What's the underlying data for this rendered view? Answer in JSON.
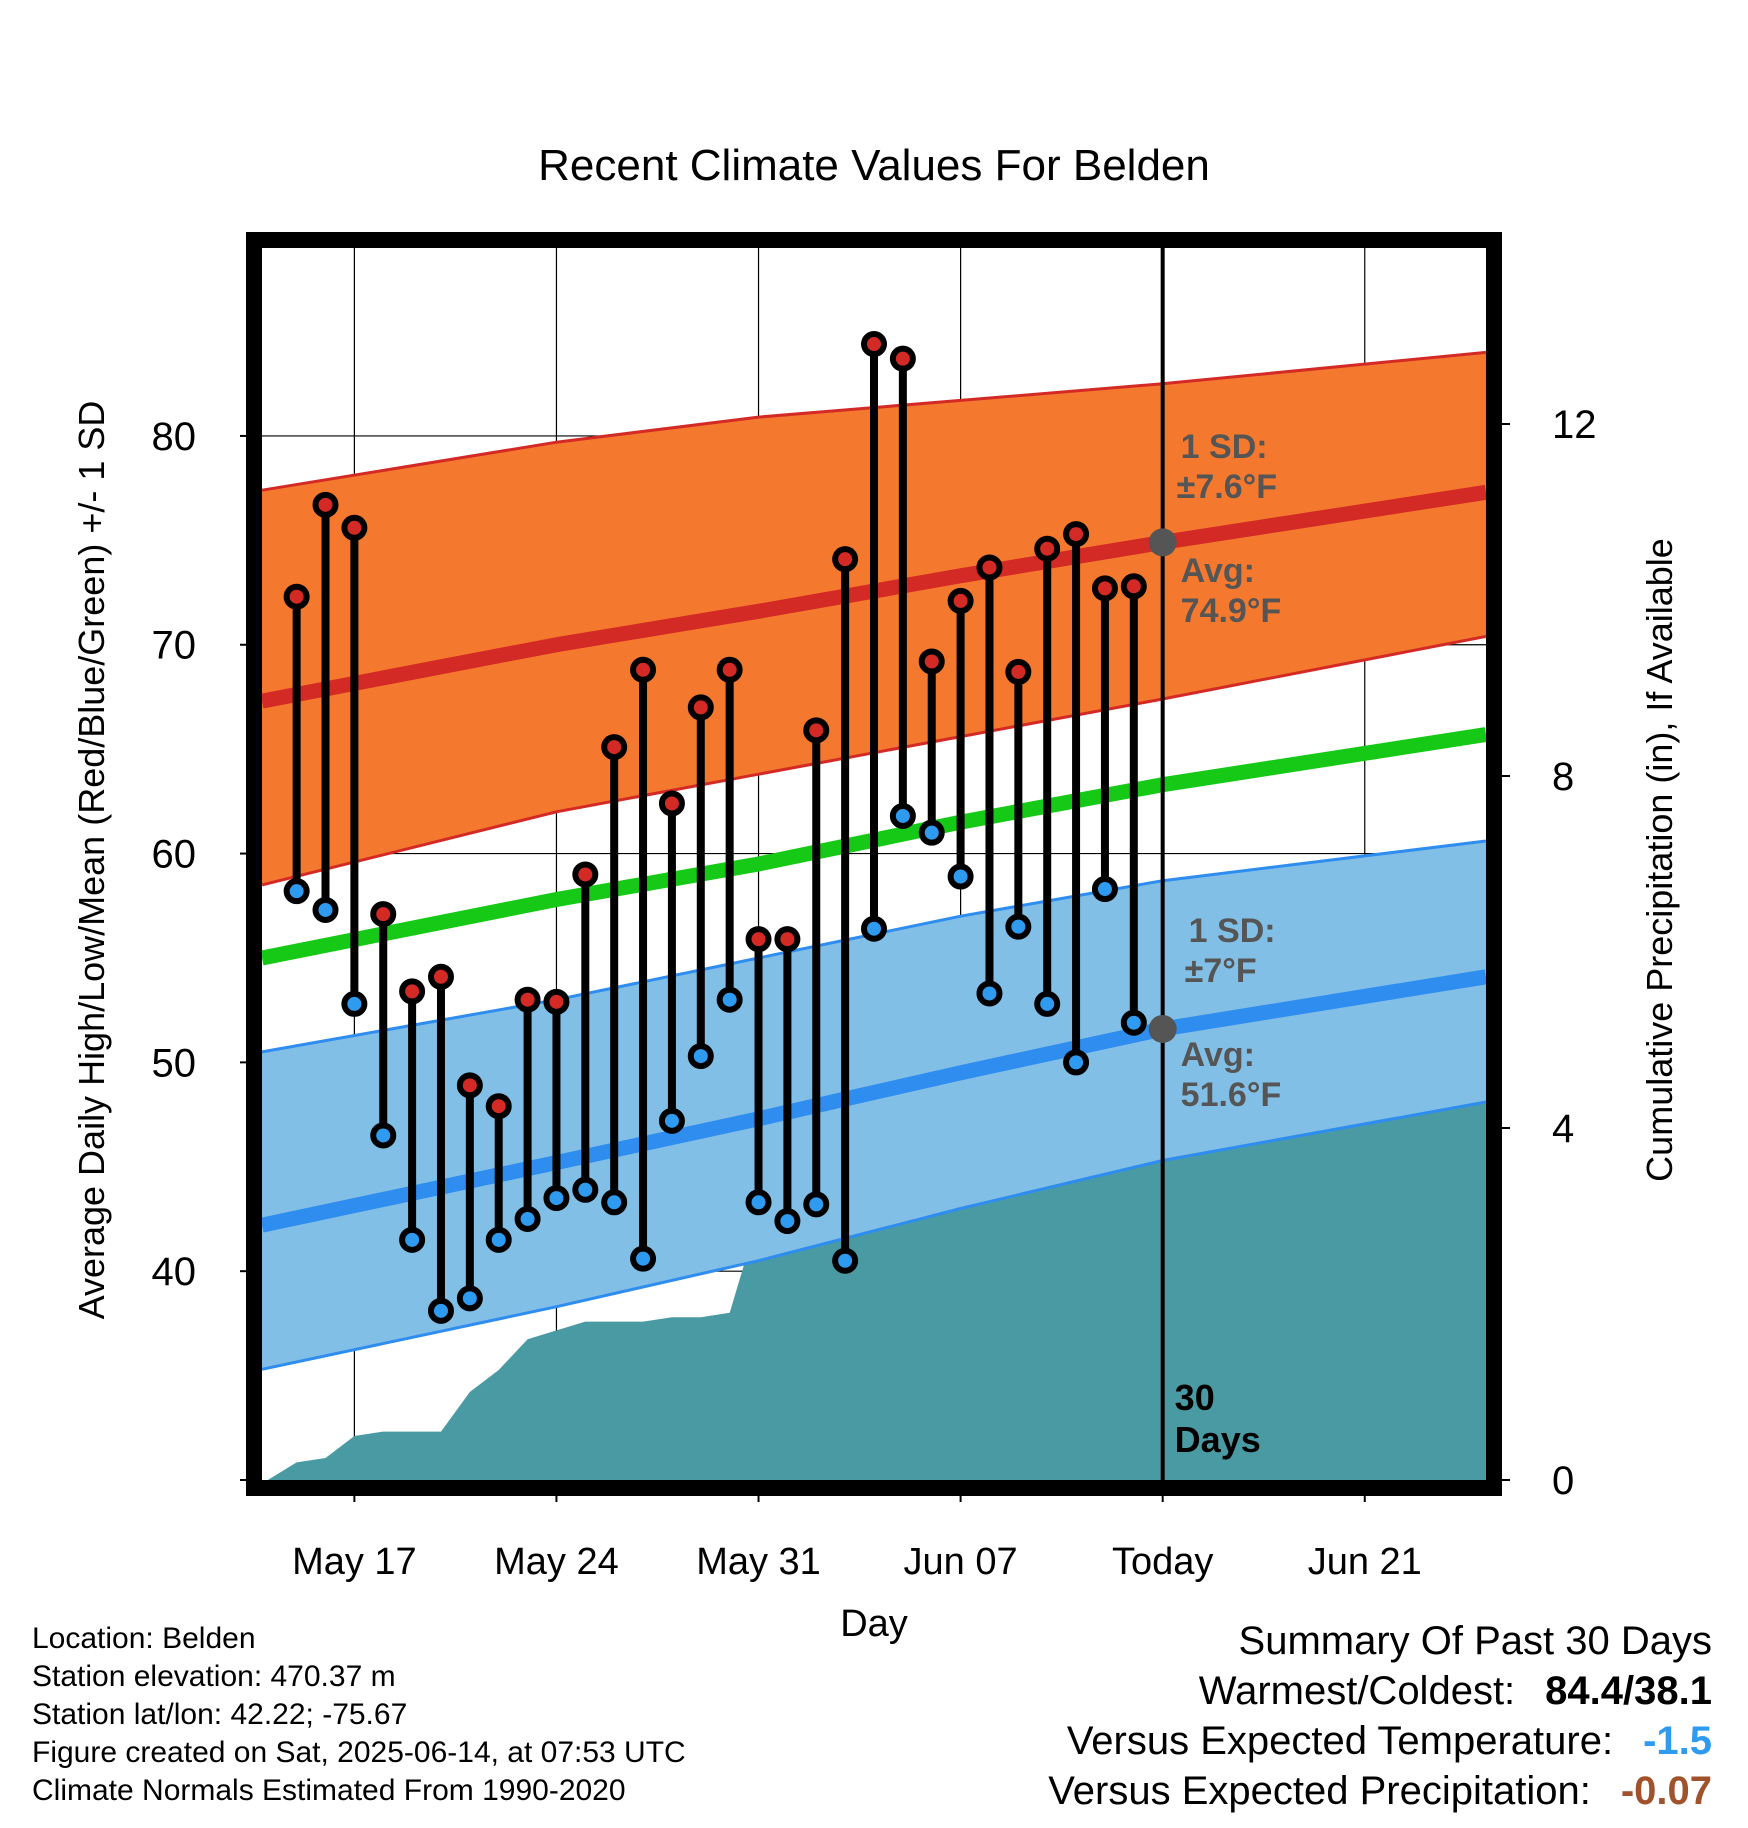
{
  "chart_data": {
    "type": "line",
    "title": "Recent Climate Values For Belden",
    "xlabel": "Day",
    "ylabel_left": "Average Daily High/Low/Mean (Red/Blue/Green) +/- 1 SD",
    "ylabel_right": "Cumulative Precipitation (in), If Available",
    "y_left_range": [
      30,
      89
    ],
    "y_left_ticks": [
      40,
      50,
      60,
      70,
      80
    ],
    "y_right_range": [
      0,
      14
    ],
    "y_right_ticks": [
      0,
      4,
      8,
      12
    ],
    "x_range_days": [
      -31.2,
      11.2
    ],
    "x_ticks": [
      {
        "day": -28,
        "label": "May 17"
      },
      {
        "day": -21,
        "label": "May 24"
      },
      {
        "day": -14,
        "label": "May 31"
      },
      {
        "day": -7,
        "label": "Jun 07"
      },
      {
        "day": 0,
        "label": "Today"
      },
      {
        "day": 7,
        "label": "Jun 21"
      }
    ],
    "grid": true,
    "today_marker_label": "30 Days",
    "normal_high": {
      "x": [
        -31.2,
        -21,
        -14,
        -7,
        0,
        11.2
      ],
      "avg": [
        67.3,
        70.0,
        71.6,
        73.3,
        74.9,
        77.3
      ],
      "upper": [
        77.4,
        79.7,
        80.9,
        81.7,
        82.5,
        84.0
      ],
      "lower": [
        58.5,
        62.0,
        63.8,
        65.6,
        67.4,
        70.4
      ]
    },
    "normal_mean": {
      "x": [
        -31.2,
        -21,
        -14,
        -7,
        0,
        11.2
      ],
      "avg": [
        55.0,
        57.8,
        59.5,
        61.5,
        63.3,
        65.7
      ]
    },
    "normal_low": {
      "x": [
        -31.2,
        -21,
        -14,
        -7,
        0,
        11.2
      ],
      "avg": [
        42.2,
        45.2,
        47.3,
        49.5,
        51.6,
        54.1
      ],
      "upper": [
        50.5,
        53.0,
        55.0,
        57.0,
        58.7,
        60.6
      ],
      "lower": [
        35.3,
        38.3,
        40.5,
        43.0,
        45.3,
        48.1
      ]
    },
    "annotations": {
      "high_sd_label": "1 SD:",
      "high_sd_value": "±7.6°F",
      "high_avg_label": "Avg:",
      "high_avg_value": "74.9°F",
      "low_sd_label": "1 SD:",
      "low_sd_value": "±7°F",
      "low_avg_label": "Avg:",
      "low_avg_value": "51.6°F"
    },
    "daily": {
      "x": [
        -30,
        -29,
        -28,
        -27,
        -26,
        -25,
        -24,
        -23,
        -22,
        -21,
        -20,
        -19,
        -18,
        -17,
        -16,
        -15,
        -14,
        -13,
        -12,
        -11,
        -10,
        -9,
        -8,
        -7,
        -6,
        -5,
        -4,
        -3,
        -2,
        -1
      ],
      "high": [
        72.3,
        76.7,
        75.6,
        57.1,
        53.4,
        54.1,
        48.9,
        47.9,
        53.0,
        52.9,
        59.0,
        65.1,
        68.8,
        62.4,
        67.0,
        68.8,
        55.9,
        55.9,
        65.9,
        74.1,
        84.4,
        83.7,
        69.2,
        72.1,
        73.7,
        68.7,
        74.6,
        75.3,
        72.7,
        72.8
      ],
      "low": [
        58.2,
        57.3,
        52.8,
        46.5,
        41.5,
        38.1,
        38.7,
        41.5,
        42.5,
        43.5,
        43.9,
        43.3,
        40.6,
        47.2,
        50.3,
        53.0,
        43.3,
        42.4,
        43.2,
        40.5,
        56.4,
        61.8,
        61.0,
        58.9,
        53.3,
        56.5,
        52.8,
        50.0,
        58.3,
        51.9
      ]
    },
    "precipitation": {
      "x": [
        -31,
        -30,
        -29,
        -28,
        -27,
        -26,
        -25,
        -24,
        -23,
        -22,
        -21,
        -20,
        -19,
        -18,
        -17,
        -16,
        -15,
        -14,
        -13,
        -12,
        -11,
        -10,
        -9,
        -8,
        -7,
        -6,
        -5,
        -4,
        -3,
        -2,
        -1,
        0,
        11.2
      ],
      "cumulative": [
        0.0,
        0.2,
        0.25,
        0.5,
        0.55,
        0.55,
        0.55,
        1.0,
        1.25,
        1.6,
        1.7,
        1.8,
        1.8,
        1.8,
        1.85,
        1.85,
        1.9,
        3.0,
        3.05,
        3.05,
        3.05,
        3.05,
        3.35,
        3.5,
        4.05,
        4.1,
        4.25,
        4.4,
        4.4,
        4.4,
        4.6,
        4.6,
        4.6
      ]
    }
  },
  "info": {
    "location": "Location: Belden",
    "elevation": "Station elevation: 470.37 m",
    "latlon": "Station lat/lon: 42.22; -75.67",
    "created": "Figure created on Sat, 2025-06-14, at 07:53 UTC",
    "normals": "Climate Normals Estimated From 1990-2020"
  },
  "summary": {
    "title": "Summary Of Past 30 Days",
    "warmest_coldest_label": "Warmest/Coldest:",
    "warmest_coldest_value": "84.4/38.1",
    "temp_label": "Versus Expected Temperature:",
    "temp_value": "-1.5",
    "precip_label": "Versus Expected Precipitation:",
    "precip_value": "-0.07"
  },
  "colors": {
    "high_band": "#f4792e",
    "high_avg": "#d42a25",
    "mean_avg": "#16c916",
    "low_band": "#82bfe6",
    "low_avg": "#2e8def",
    "precip": "#4a9aa3",
    "high_marker": "#d42a25",
    "low_marker": "#2e9bf0",
    "annotation": "#555555",
    "temp_value": "#2e9bf0",
    "precip_value": "#a0522d"
  }
}
